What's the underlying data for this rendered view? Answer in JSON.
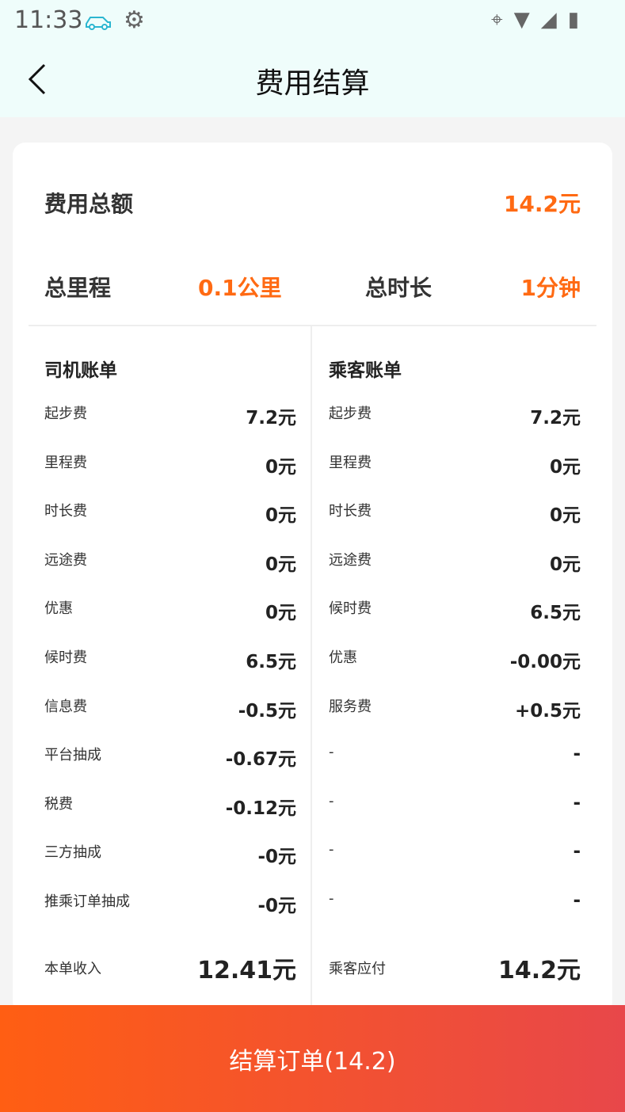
{
  "status_bar": {
    "time": "11:33"
  },
  "header": {
    "title": "费用结算"
  },
  "summary": {
    "total_label": "费用总额",
    "total_value": "14.2元",
    "distance_label": "总里程",
    "distance_value": "0.1公里",
    "duration_label": "总时长",
    "duration_value": "1分钟"
  },
  "driver": {
    "title": "司机账单",
    "rows": [
      {
        "k": "起步费",
        "v": "7.2元"
      },
      {
        "k": "里程费",
        "v": "0元"
      },
      {
        "k": "时长费",
        "v": "0元"
      },
      {
        "k": "远途费",
        "v": "0元"
      },
      {
        "k": "优惠",
        "v": "0元"
      },
      {
        "k": "候时费",
        "v": "6.5元"
      },
      {
        "k": "信息费",
        "v": "-0.5元"
      },
      {
        "k": "平台抽成",
        "v": "-0.67元"
      },
      {
        "k": "税费",
        "v": "-0.12元"
      },
      {
        "k": "三方抽成",
        "v": "-0元"
      },
      {
        "k": "推乘订单抽成",
        "v": "-0元"
      }
    ],
    "total_label": "本单收入",
    "total_value": "12.41元"
  },
  "passenger": {
    "title": "乘客账单",
    "rows": [
      {
        "k": "起步费",
        "v": "7.2元"
      },
      {
        "k": "里程费",
        "v": "0元"
      },
      {
        "k": "时长费",
        "v": "0元"
      },
      {
        "k": "远途费",
        "v": "0元"
      },
      {
        "k": "候时费",
        "v": "6.5元"
      },
      {
        "k": "优惠",
        "v": "-0.00元"
      },
      {
        "k": "服务费",
        "v": "+0.5元"
      },
      {
        "k": "-",
        "v": "-"
      },
      {
        "k": "-",
        "v": "-"
      },
      {
        "k": "-",
        "v": "-"
      },
      {
        "k": "-",
        "v": "-"
      }
    ],
    "total_label": "乘客应付",
    "total_value": "14.2元"
  },
  "settle_button": "结算订单(14.2)",
  "colors": {
    "accent": "#ff6a13",
    "button_start": "#ff5e13",
    "button_end": "#e8474a",
    "header_bg": "#effdfb"
  }
}
